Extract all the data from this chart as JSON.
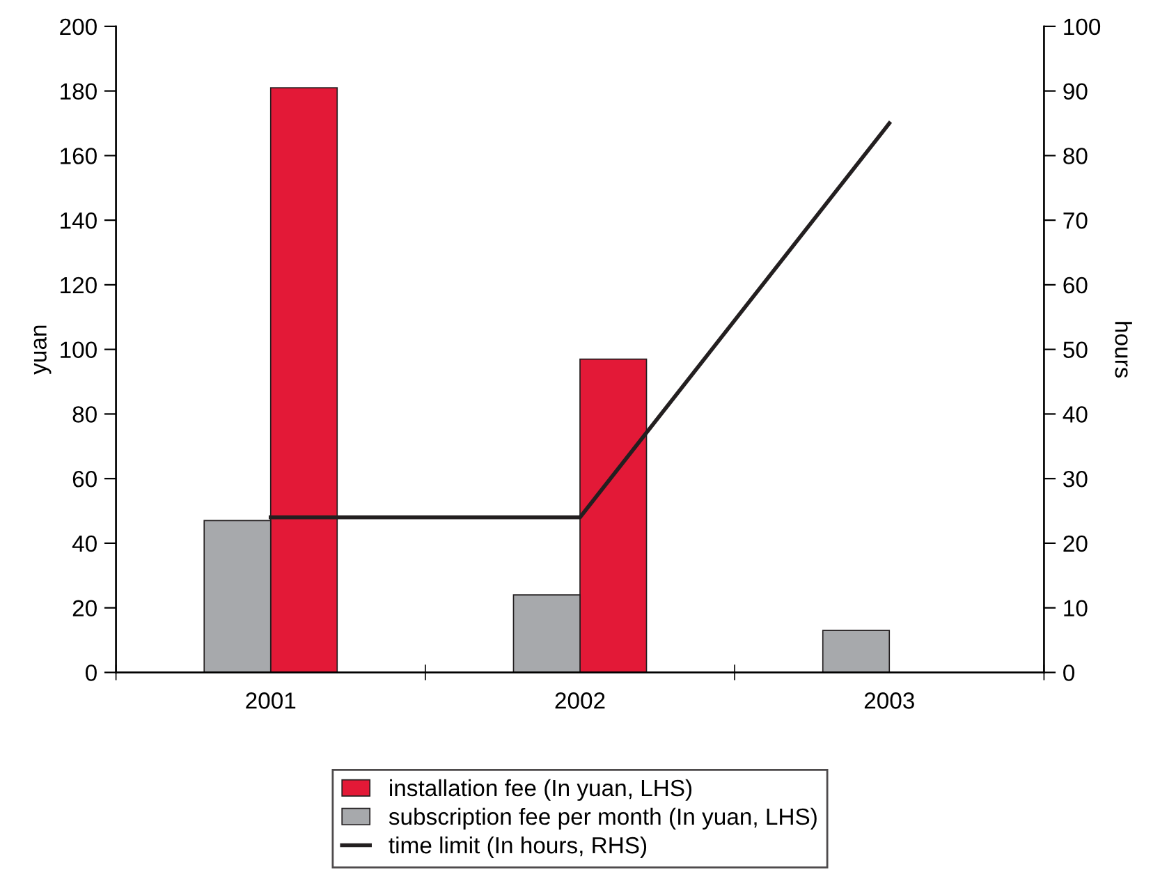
{
  "chart_data": {
    "type": "bar",
    "categories": [
      "2001",
      "2002",
      "2003"
    ],
    "ylabel": "yuan",
    "y2label": "hours",
    "ylim": [
      0,
      200
    ],
    "yticks": [
      0,
      20,
      40,
      60,
      80,
      100,
      120,
      140,
      160,
      180,
      200
    ],
    "y2lim": [
      0,
      100
    ],
    "y2ticks": [
      0,
      10,
      20,
      30,
      40,
      50,
      60,
      70,
      80,
      90,
      100
    ],
    "series": [
      {
        "name": "installation fee (In yuan, LHS)",
        "color": "#e31937",
        "values": [
          181,
          97,
          null
        ]
      },
      {
        "name": "subscription fee per month (In yuan, LHS)",
        "color": "#a7a9ac",
        "values": [
          47,
          24,
          13
        ]
      },
      {
        "name": "time limit (In hours, RHS)",
        "type": "line",
        "axis": "y2",
        "color": "#231f20",
        "values": [
          24,
          24,
          85
        ]
      }
    ],
    "legend": "bottom",
    "grid": false
  }
}
